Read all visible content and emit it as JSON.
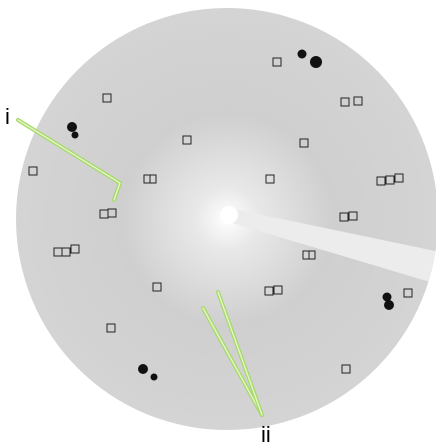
{
  "annotations": [
    "i",
    "ii"
  ]
}
